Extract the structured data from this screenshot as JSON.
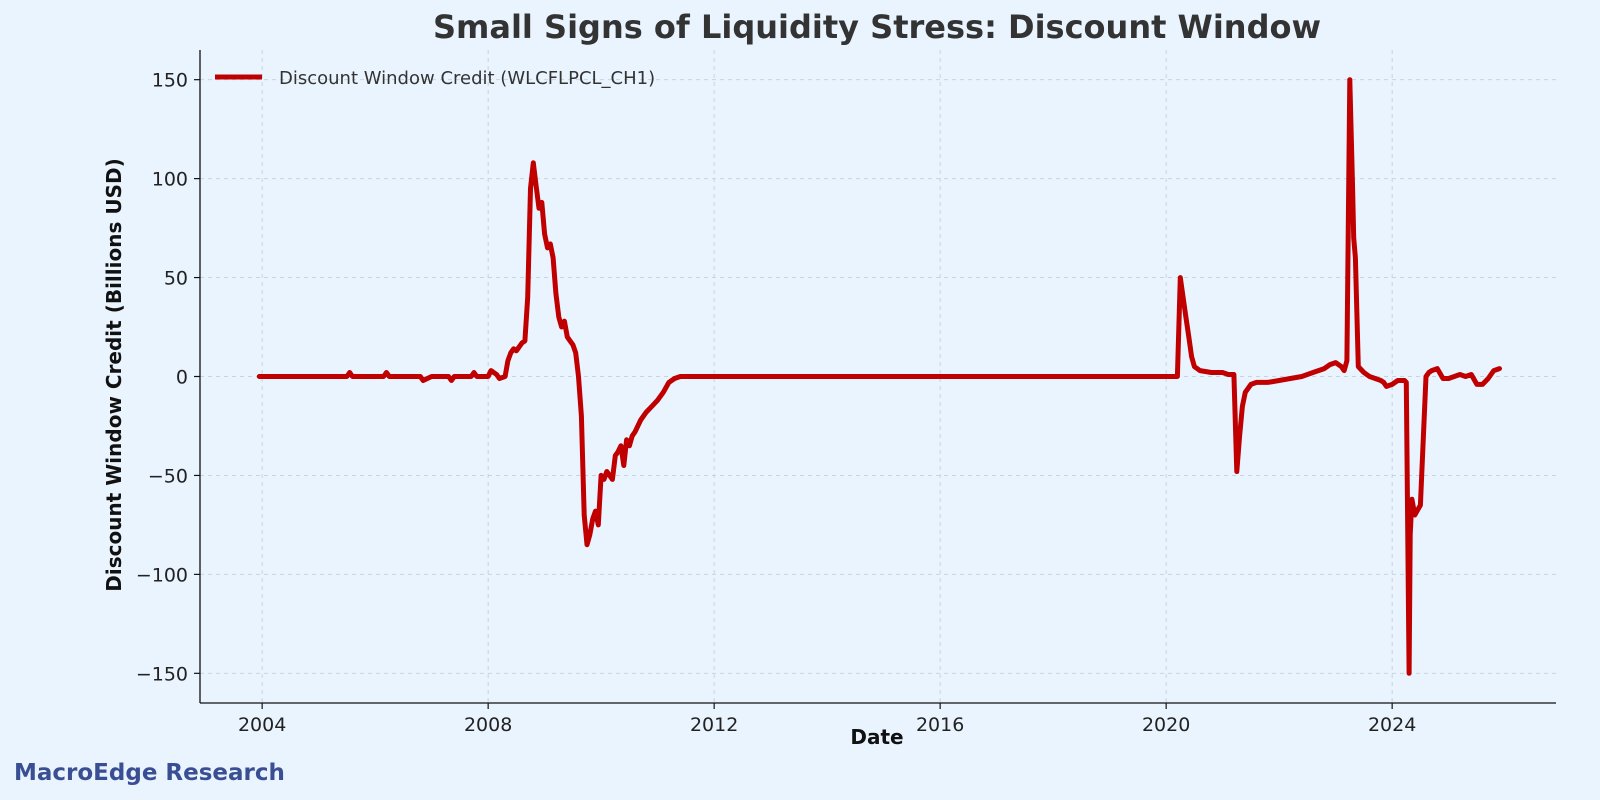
{
  "colors": {
    "background": "#eaf4ff",
    "line": "#c00000",
    "grid": "#c8d3e0",
    "axis": "#111111",
    "brand": "#3a4f93"
  },
  "brand": {
    "text": "MacroEdge Research"
  },
  "chart_data": {
    "type": "line",
    "title": "Small Signs of Liquidity Stress: Discount Window",
    "xlabel": "Date",
    "ylabel": "Discount Window Credit (Billions USD)",
    "xlim": [
      2002.9,
      2026.9
    ],
    "ylim": [
      -165,
      165
    ],
    "xticks": [
      {
        "value": 2004,
        "label": "2004"
      },
      {
        "value": 2008,
        "label": "2008"
      },
      {
        "value": 2012,
        "label": "2012"
      },
      {
        "value": 2016,
        "label": "2016"
      },
      {
        "value": 2020,
        "label": "2020"
      },
      {
        "value": 2024,
        "label": "2024"
      }
    ],
    "yticks": [
      {
        "value": 150,
        "label": "150"
      },
      {
        "value": 100,
        "label": "100"
      },
      {
        "value": 50,
        "label": "50"
      },
      {
        "value": 0,
        "label": "0"
      },
      {
        "value": -50,
        "label": "−50"
      },
      {
        "value": -100,
        "label": "−100"
      },
      {
        "value": -150,
        "label": "−150"
      }
    ],
    "grid": true,
    "legend_position": "top-left",
    "series": [
      {
        "name": "Discount Window Credit (WLCFLPCL_CH1)",
        "color": "#c00000",
        "x": [
          2003.95,
          2004.5,
          2005.0,
          2005.5,
          2005.55,
          2005.6,
          2006.0,
          2006.15,
          2006.2,
          2006.25,
          2006.5,
          2006.8,
          2006.85,
          2007.0,
          2007.3,
          2007.35,
          2007.4,
          2007.5,
          2007.7,
          2007.75,
          2007.8,
          2007.9,
          2008.0,
          2008.05,
          2008.15,
          2008.2,
          2008.3,
          2008.35,
          2008.4,
          2008.45,
          2008.5,
          2008.55,
          2008.6,
          2008.65,
          2008.7,
          2008.75,
          2008.8,
          2008.85,
          2008.9,
          2008.95,
          2009.0,
          2009.05,
          2009.1,
          2009.15,
          2009.2,
          2009.25,
          2009.3,
          2009.35,
          2009.4,
          2009.45,
          2009.5,
          2009.55,
          2009.6,
          2009.65,
          2009.7,
          2009.75,
          2009.8,
          2009.85,
          2009.9,
          2009.95,
          2010.0,
          2010.05,
          2010.1,
          2010.15,
          2010.2,
          2010.25,
          2010.3,
          2010.35,
          2010.4,
          2010.45,
          2010.5,
          2010.55,
          2010.6,
          2010.7,
          2010.8,
          2010.9,
          2011.0,
          2011.1,
          2011.2,
          2011.3,
          2011.4,
          2011.5,
          2012.0,
          2016.0,
          2019.0,
          2020.2,
          2020.25,
          2020.3,
          2020.35,
          2020.4,
          2020.45,
          2020.5,
          2020.6,
          2020.8,
          2021.0,
          2021.1,
          2021.15,
          2021.2,
          2021.25,
          2021.3,
          2021.35,
          2021.4,
          2021.5,
          2021.6,
          2021.8,
          2022.0,
          2022.2,
          2022.4,
          2022.6,
          2022.8,
          2022.9,
          2023.0,
          2023.1,
          2023.15,
          2023.17,
          2023.2,
          2023.25,
          2023.3,
          2023.32,
          2023.35,
          2023.4,
          2023.5,
          2023.6,
          2023.7,
          2023.8,
          2023.85,
          2023.9,
          2024.0,
          2024.1,
          2024.2,
          2024.22,
          2024.25,
          2024.3,
          2024.32,
          2024.35,
          2024.4,
          2024.5,
          2024.6,
          2024.65,
          2024.7,
          2024.8,
          2024.9,
          2025.0,
          2025.1,
          2025.2,
          2025.3,
          2025.4,
          2025.5,
          2025.6,
          2025.7,
          2025.75,
          2025.8,
          2025.9
        ],
        "y": [
          0,
          0,
          0,
          0,
          2,
          0,
          0,
          0,
          2,
          0,
          0,
          0,
          -2,
          0,
          0,
          -2,
          0,
          0,
          0,
          2,
          0,
          0,
          0,
          3,
          1,
          -1,
          0,
          8,
          12,
          14,
          13,
          15,
          17,
          18,
          40,
          95,
          108,
          96,
          85,
          88,
          72,
          65,
          67,
          60,
          42,
          30,
          25,
          28,
          20,
          18,
          16,
          12,
          0,
          -20,
          -70,
          -85,
          -80,
          -72,
          -68,
          -75,
          -50,
          -52,
          -48,
          -50,
          -52,
          -40,
          -38,
          -35,
          -45,
          -32,
          -35,
          -30,
          -28,
          -22,
          -18,
          -15,
          -12,
          -8,
          -3,
          -1,
          0,
          0,
          0,
          0,
          0,
          0,
          50,
          40,
          30,
          20,
          10,
          5,
          3,
          2,
          2,
          1,
          1,
          1,
          -48,
          -30,
          -15,
          -8,
          -4,
          -3,
          -3,
          -2,
          -1,
          0,
          2,
          4,
          6,
          7,
          5,
          3,
          5,
          8,
          150,
          95,
          70,
          60,
          5,
          2,
          0,
          -1,
          -2,
          -3,
          -5,
          -4,
          -2,
          -2,
          -2,
          -3,
          -150,
          -80,
          -62,
          -70,
          -65,
          0,
          2,
          3,
          4,
          -1,
          -1,
          0,
          1,
          0,
          1,
          -4,
          -4,
          -1,
          1,
          3,
          4
        ]
      }
    ]
  }
}
